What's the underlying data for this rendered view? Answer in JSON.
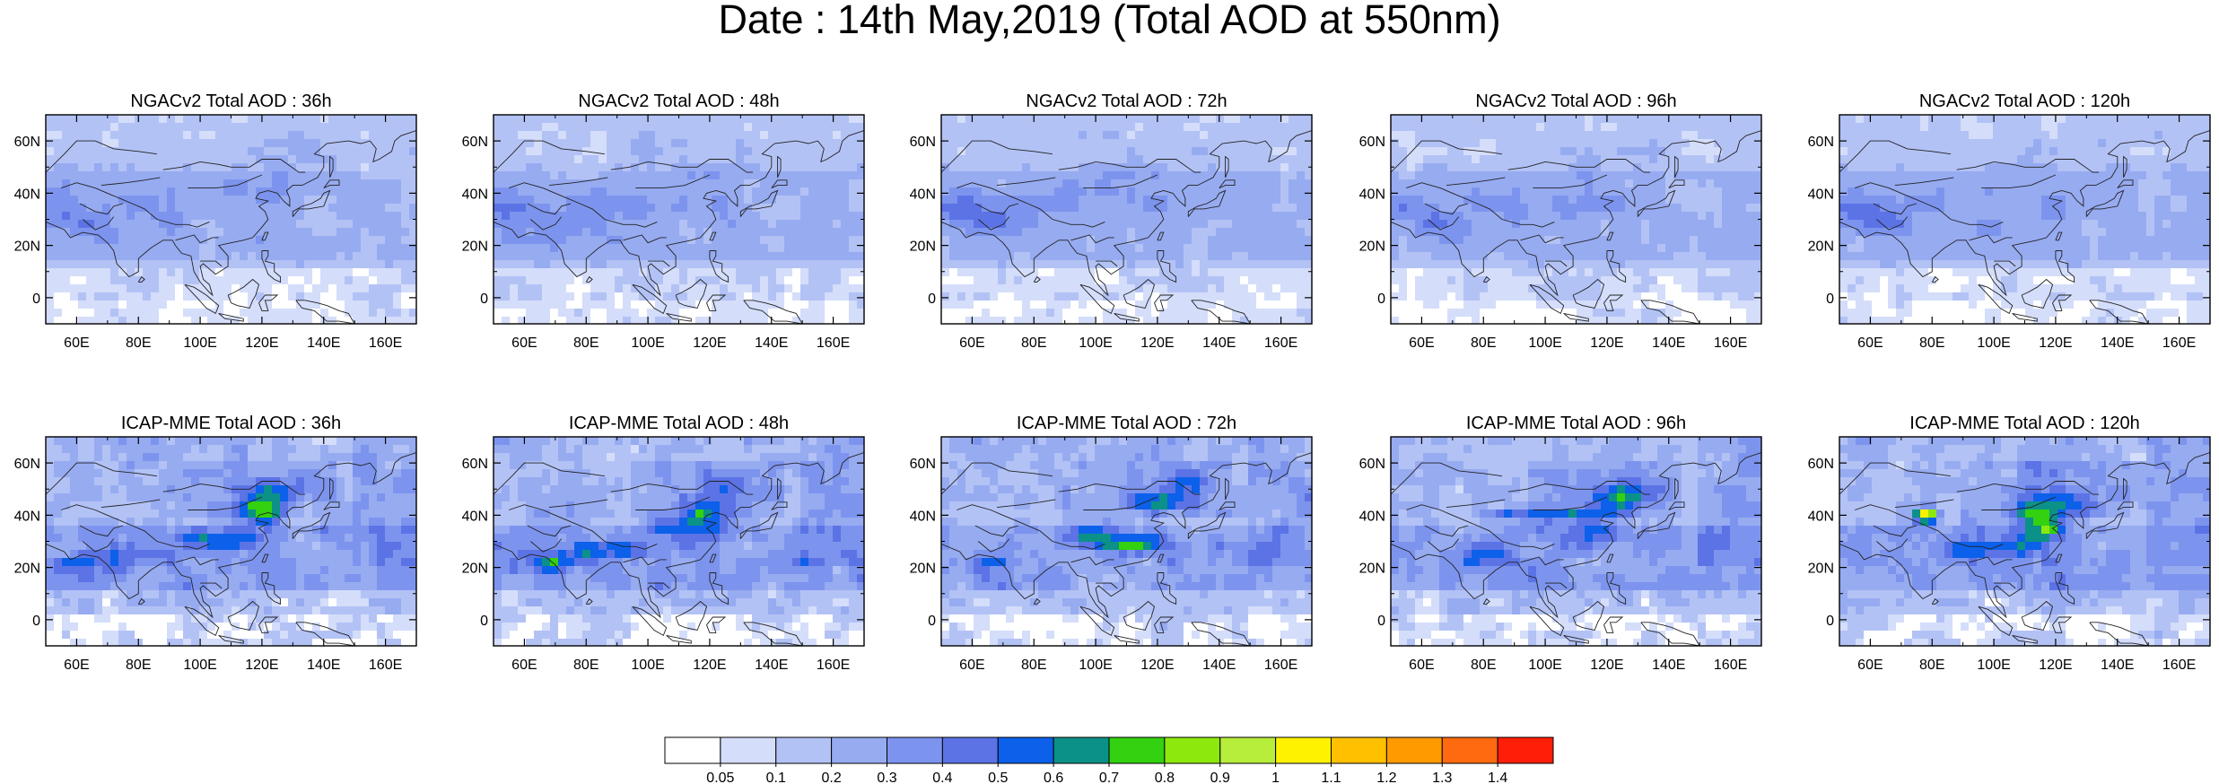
{
  "title": "Date : 14th May,2019 (Total AOD at 550nm)",
  "panel_rows": [
    {
      "model": "NGACv2",
      "panels": [
        {
          "title": "NGACv2 Total AOD : 36h",
          "forecast_hour": 36
        },
        {
          "title": "NGACv2 Total AOD : 48h",
          "forecast_hour": 48
        },
        {
          "title": "NGACv2 Total AOD : 72h",
          "forecast_hour": 72
        },
        {
          "title": "NGACv2 Total AOD : 96h",
          "forecast_hour": 96
        },
        {
          "title": "NGACv2 Total AOD : 120h",
          "forecast_hour": 120
        }
      ]
    },
    {
      "model": "ICAP-MME",
      "panels": [
        {
          "title": "ICAP-MME Total AOD : 36h",
          "forecast_hour": 36
        },
        {
          "title": "ICAP-MME Total AOD : 48h",
          "forecast_hour": 48
        },
        {
          "title": "ICAP-MME Total AOD : 72h",
          "forecast_hour": 72
        },
        {
          "title": "ICAP-MME Total AOD : 96h",
          "forecast_hour": 96
        },
        {
          "title": "ICAP-MME Total AOD : 120h",
          "forecast_hour": 120
        }
      ]
    }
  ],
  "map_extent": {
    "lon_min": 50,
    "lon_max": 170,
    "lat_min": -10,
    "lat_max": 70
  },
  "lat_ticks": [
    {
      "value": 0,
      "label": "0"
    },
    {
      "value": 20,
      "label": "20N"
    },
    {
      "value": 40,
      "label": "40N"
    },
    {
      "value": 60,
      "label": "60N"
    }
  ],
  "lon_ticks": [
    {
      "value": 60,
      "label": "60E"
    },
    {
      "value": 80,
      "label": "80E"
    },
    {
      "value": 100,
      "label": "100E"
    },
    {
      "value": 120,
      "label": "120E"
    },
    {
      "value": 140,
      "label": "140E"
    },
    {
      "value": 160,
      "label": "160E"
    }
  ],
  "colorbar": {
    "levels": [
      0.05,
      0.1,
      0.2,
      0.3,
      0.4,
      0.5,
      0.6,
      0.7,
      0.8,
      0.9,
      1,
      1.1,
      1.2,
      1.3,
      1.4
    ],
    "level_labels": [
      "0.05",
      "0.1",
      "0.2",
      "0.3",
      "0.4",
      "0.5",
      "0.6",
      "0.7",
      "0.8",
      "0.9",
      "1",
      "1.1",
      "1.2",
      "1.3",
      "1.4"
    ],
    "colors": [
      "#ffffff",
      "#d4ddfa",
      "#b3c2f5",
      "#97abf1",
      "#7d94ee",
      "#5c73e6",
      "#0c60ea",
      "#0b9187",
      "#33d10f",
      "#8de90d",
      "#b7ed3b",
      "#fff200",
      "#ffc000",
      "#ff9b00",
      "#ff6a10",
      "#ff1e08"
    ]
  }
}
